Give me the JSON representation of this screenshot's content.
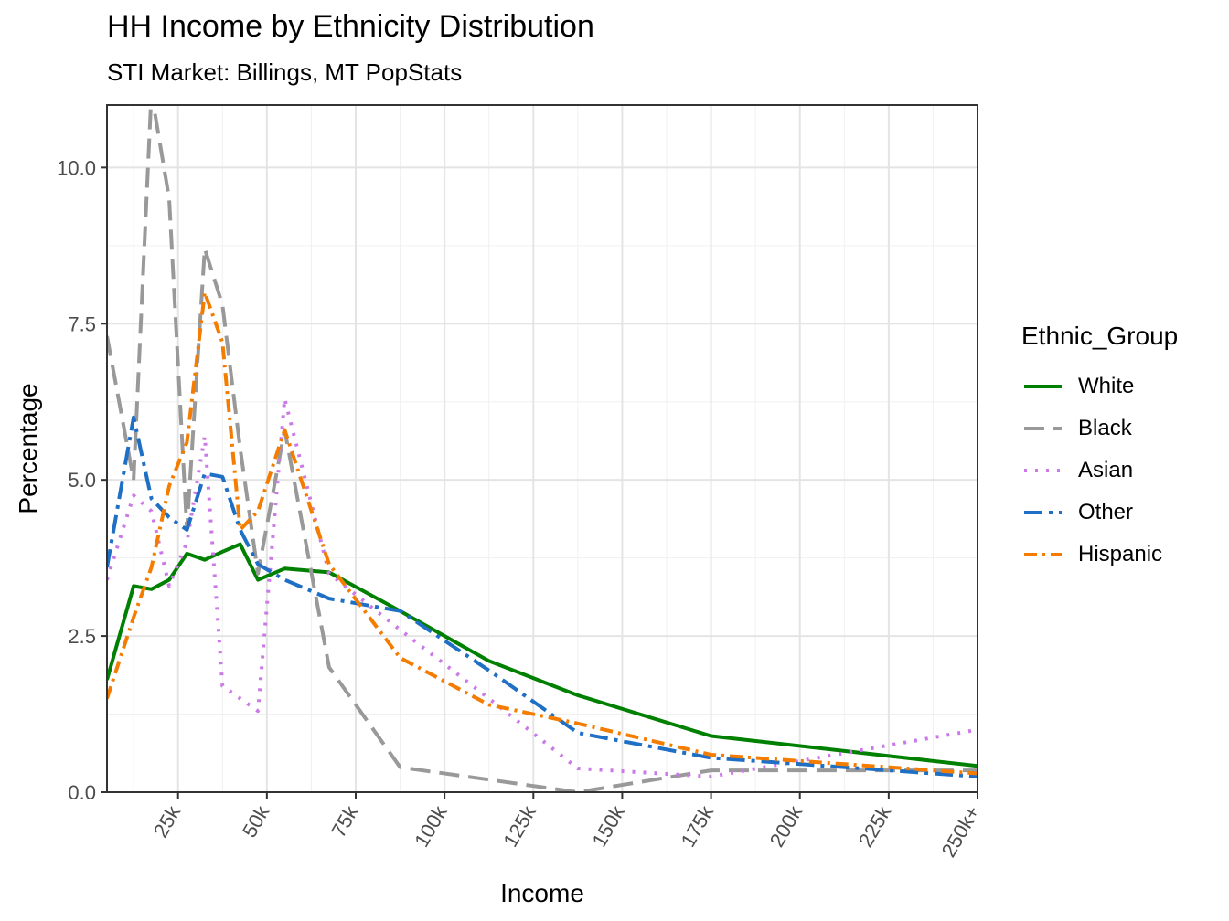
{
  "title": "HH Income by Ethnicity Distribution",
  "subtitle": "STI Market: Billings, MT PopStats",
  "chart_data": {
    "type": "line",
    "title": "HH Income by Ethnicity Distribution",
    "subtitle": "STI Market: Billings, MT PopStats",
    "xlabel": "Income",
    "ylabel": "Percentage",
    "xlim": [
      5000,
      250000
    ],
    "ylim": [
      0,
      11
    ],
    "x_ticks": [
      25000,
      50000,
      75000,
      100000,
      125000,
      150000,
      175000,
      200000,
      225000,
      250000
    ],
    "x_tick_labels": [
      "25k",
      "50k",
      "75k",
      "100k",
      "125k",
      "150k",
      "175k",
      "200k",
      "225k",
      "250k+"
    ],
    "y_ticks": [
      0,
      2.5,
      5,
      7.5,
      10
    ],
    "y_tick_labels": [
      "0.0",
      "2.5",
      "5.0",
      "7.5",
      "10.0"
    ],
    "grid": true,
    "legend_title": "Ethnic_Group",
    "legend_position": "right",
    "x": [
      5000,
      12500,
      17500,
      22500,
      27500,
      32500,
      37500,
      42500,
      47500,
      55000,
      67500,
      87500,
      112500,
      137500,
      175000,
      250000
    ],
    "series": [
      {
        "name": "White",
        "color": "#008000",
        "dash": "",
        "width": 4,
        "values": [
          1.8,
          3.3,
          3.25,
          3.4,
          3.82,
          3.72,
          3.85,
          3.97,
          3.4,
          3.58,
          3.52,
          2.9,
          2.1,
          1.55,
          0.9,
          0.42
        ]
      },
      {
        "name": "Black",
        "color": "#999999",
        "dash": "22,10",
        "width": 4,
        "values": [
          7.3,
          5.0,
          11.2,
          9.5,
          4.2,
          8.7,
          7.8,
          5.5,
          3.5,
          5.8,
          2.0,
          0.4,
          0.2,
          0.0,
          0.35,
          0.35
        ]
      },
      {
        "name": "Asian",
        "color": "#cc79e8",
        "dash": "3,9",
        "width": 4,
        "values": [
          3.4,
          4.75,
          4.5,
          3.3,
          4.0,
          5.7,
          1.7,
          1.5,
          1.3,
          6.3,
          3.5,
          2.6,
          1.5,
          0.38,
          0.25,
          1.0
        ]
      },
      {
        "name": "Other",
        "color": "#1f6fc5",
        "dash": "20,7,4,7",
        "width": 4,
        "values": [
          3.6,
          6.0,
          4.7,
          4.4,
          4.2,
          5.1,
          5.05,
          4.2,
          3.65,
          3.4,
          3.1,
          2.9,
          1.95,
          0.95,
          0.55,
          0.25
        ]
      },
      {
        "name": "Hispanic",
        "color": "#f47c00",
        "dash": "14,6,3,6",
        "width": 4,
        "values": [
          1.5,
          2.8,
          3.6,
          4.9,
          5.6,
          8.0,
          7.2,
          4.2,
          4.5,
          5.8,
          3.65,
          2.15,
          1.4,
          1.1,
          0.6,
          0.3
        ]
      }
    ]
  }
}
